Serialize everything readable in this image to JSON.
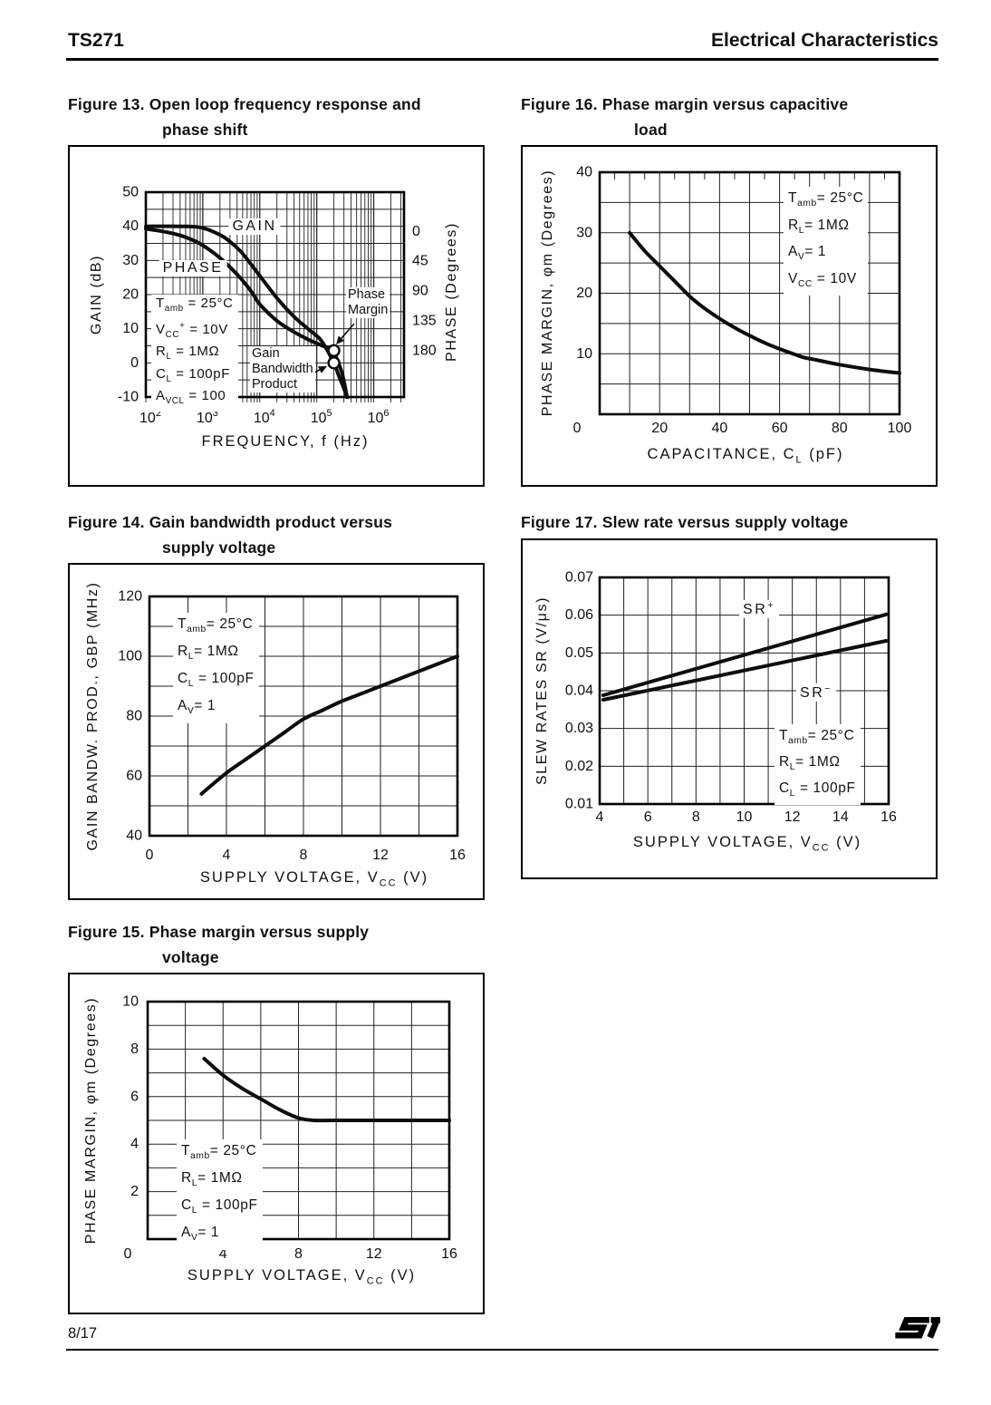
{
  "header": {
    "left": "TS271",
    "right": "Electrical Characteristics"
  },
  "footer": {
    "page": "8/17",
    "logo": "ST"
  },
  "chart_data": [
    {
      "id": "figure-13",
      "type": "line",
      "title_lines": [
        "Figure 13. Open loop frequency response and",
        "phase shift"
      ],
      "x_axis": {
        "label": "FREQUENCY, f (Hz)",
        "scale": "log",
        "min": 100,
        "max": 3400000,
        "tick_exponents": [
          2,
          3,
          4,
          5,
          6
        ]
      },
      "y_axis": {
        "label": "GAIN (dB)",
        "min": -10,
        "max": 50,
        "grid_step": 5,
        "ticks": [
          "50",
          "40",
          "30",
          "20",
          "10",
          "0",
          "-10"
        ]
      },
      "y2_axis": {
        "label": "PHASE (Degrees)",
        "ticks": [
          "0",
          "45",
          "90",
          "135",
          "180"
        ],
        "deg0_at_dB": 38.5,
        "deg180_at_dB": 3.6
      },
      "series": [
        {
          "name": "GAIN",
          "label": "GAIN",
          "axis": "y",
          "points": [
            [
              100,
              40
            ],
            [
              500,
              40
            ],
            [
              1000,
              39.5
            ],
            [
              2000,
              37.5
            ],
            [
              3000,
              35.5
            ],
            [
              5000,
              32
            ],
            [
              10000,
              25.5
            ],
            [
              20000,
              19
            ],
            [
              40000,
              13.5
            ],
            [
              70000,
              10
            ],
            [
              120000,
              6.5
            ],
            [
              200000,
              0
            ],
            [
              240000,
              -3.5
            ],
            [
              300000,
              -7.5
            ],
            [
              360000,
              -11.5
            ]
          ]
        },
        {
          "name": "PHASE",
          "label": "PHASE",
          "axis": "y2",
          "points": [
            [
              100,
              -4
            ],
            [
              200,
              0
            ],
            [
              400,
              6
            ],
            [
              700,
              14
            ],
            [
              1000,
              21
            ],
            [
              2000,
              40
            ],
            [
              4000,
              65
            ],
            [
              7000,
              90
            ],
            [
              10000,
              110
            ],
            [
              20000,
              135
            ],
            [
              40000,
              152
            ],
            [
              70000,
              163
            ],
            [
              120000,
              172
            ],
            [
              200000,
              180
            ],
            [
              220000,
              190
            ],
            [
              280000,
              215
            ],
            [
              340000,
              250
            ]
          ]
        }
      ],
      "markers": [
        {
          "name": "phase-margin-point",
          "f": 200000,
          "dB": 3.6
        },
        {
          "name": "gain-bandwidth-point",
          "f": 200000,
          "dB": 0
        }
      ],
      "conditions": [
        "T_[amb] = 25°C",
        "V_[CC]^[+] = 10V",
        "R_[L] = 1MΩ",
        "C_[L] = 100pF",
        "A_[VCL] = 100"
      ],
      "annotations": [
        {
          "name": "phase-margin-callout",
          "lines": [
            "Phase",
            "Margin"
          ]
        },
        {
          "name": "gain-bandwidth-callout",
          "lines": [
            "Gain",
            "Bandwidth",
            "Product"
          ]
        }
      ]
    },
    {
      "id": "figure-16",
      "type": "line",
      "title_lines": [
        "Figure 16. Phase margin versus capacitive",
        "load"
      ],
      "x_axis": {
        "label": "CAPACITANCE, C_[L] (pF)",
        "min": 0,
        "max": 100,
        "grid_step": 10,
        "ticks": [
          "20",
          "40",
          "60",
          "80",
          "100"
        ],
        "origin_label": "0",
        "top_tick_step": 5
      },
      "y_axis": {
        "label": "PHASE MARGIN, φm (Degrees)",
        "min": 0,
        "max": 40,
        "grid_step": 5,
        "ticks": [
          "40",
          "30",
          "20",
          "10"
        ]
      },
      "series": [
        {
          "name": "phase-margin-vs-cl",
          "points": [
            [
              10,
              30
            ],
            [
              15,
              27
            ],
            [
              20,
              24.5
            ],
            [
              25,
              22
            ],
            [
              30,
              19.5
            ],
            [
              35,
              17.5
            ],
            [
              40,
              15.8
            ],
            [
              45,
              14.3
            ],
            [
              50,
              13
            ],
            [
              55,
              11.8
            ],
            [
              60,
              10.8
            ],
            [
              65,
              9.9
            ],
            [
              68,
              9.4
            ],
            [
              72,
              9
            ],
            [
              80,
              8.2
            ],
            [
              90,
              7.4
            ],
            [
              100,
              6.8
            ]
          ]
        }
      ],
      "conditions": [
        "T_[amb]= 25°C",
        "R_[L]= 1MΩ",
        "A_[V]= 1",
        "V_[CC] = 10V"
      ]
    },
    {
      "id": "figure-14",
      "type": "line",
      "title_lines": [
        "Figure 14. Gain bandwidth product versus",
        "supply voltage"
      ],
      "x_axis": {
        "label": "SUPPLY VOLTAGE, V_[CC] (V)",
        "min": 0,
        "max": 16,
        "grid_step": 2,
        "ticks": [
          "0",
          "4",
          "8",
          "12",
          "16"
        ]
      },
      "y_axis": {
        "label": "GAIN BANDW. PROD., GBP (MHz)",
        "min": 40,
        "max": 120,
        "grid_step": 10,
        "ticks": [
          "120",
          "100",
          "80",
          "60",
          "40"
        ]
      },
      "series": [
        {
          "name": "gbp-vs-vcc",
          "points": [
            [
              2.7,
              54
            ],
            [
              4,
              61
            ],
            [
              5,
              65.5
            ],
            [
              6,
              70
            ],
            [
              7,
              74.5
            ],
            [
              8,
              79
            ],
            [
              9,
              82
            ],
            [
              10,
              85
            ],
            [
              11,
              87.5
            ],
            [
              12,
              90
            ],
            [
              13,
              92.5
            ],
            [
              14,
              95
            ],
            [
              15,
              97.5
            ],
            [
              16,
              100
            ]
          ]
        }
      ],
      "conditions": [
        "T_[amb]= 25°C",
        "R_[L]= 1MΩ",
        "C_[L] = 100pF",
        "A_[V]= 1"
      ]
    },
    {
      "id": "figure-17",
      "type": "line",
      "title_lines": [
        "Figure 17. Slew rate versus supply voltage"
      ],
      "x_axis": {
        "label": "SUPPLY VOLTAGE, V_[CC]  (V)",
        "min": 4,
        "max": 16,
        "grid_step": 1,
        "ticks": [
          "4",
          "6",
          "8",
          "10",
          "12",
          "14",
          "16"
        ]
      },
      "y_axis": {
        "label": "SLEW RATES  SR (V/μs)",
        "min": 0.01,
        "max": 0.07,
        "grid_step": 0.01,
        "ticks": [
          "0.07",
          "0.06",
          "0.05",
          "0.04",
          "0.03",
          "0.02",
          "0.01"
        ]
      },
      "series": [
        {
          "name": "SR+",
          "label": "SR^[+]",
          "points": [
            [
              4.15,
              0.0388
            ],
            [
              15.9,
              0.0602
            ]
          ]
        },
        {
          "name": "SR-",
          "label": "SR^[−]",
          "points": [
            [
              4.15,
              0.0376
            ],
            [
              15.9,
              0.0532
            ]
          ]
        }
      ],
      "conditions": [
        "T_[amb]= 25°C",
        "R_[L]=  1MΩ",
        "C_[L] = 100pF"
      ]
    },
    {
      "id": "figure-15",
      "type": "line",
      "title_lines": [
        "Figure 15. Phase margin versus supply",
        "voltage"
      ],
      "x_axis": {
        "label": "SUPPLY VOLTAGE, V_[CC] (V)",
        "min": 0,
        "max": 16,
        "grid_step": 2,
        "ticks": [
          "4",
          "8",
          "12",
          "16"
        ],
        "origin_label": "0"
      },
      "y_axis": {
        "label": "PHASE MARGIN, φm (Degrees)",
        "min": 0,
        "max": 10,
        "grid_step": 1,
        "ticks": [
          "10",
          "8",
          "6",
          "4",
          "2"
        ]
      },
      "series": [
        {
          "name": "phase-margin-vs-vcc",
          "points": [
            [
              3,
              7.6
            ],
            [
              4,
              6.9
            ],
            [
              5,
              6.35
            ],
            [
              6,
              5.9
            ],
            [
              7,
              5.45
            ],
            [
              8,
              5.1
            ],
            [
              8.8,
              5.0
            ],
            [
              10,
              5.0
            ],
            [
              16,
              5.0
            ]
          ]
        }
      ],
      "conditions": [
        "T_[amb]= 25°C",
        "R_[L]= 1MΩ",
        "C_[L] = 100pF",
        "A_[V]= 1"
      ]
    }
  ]
}
